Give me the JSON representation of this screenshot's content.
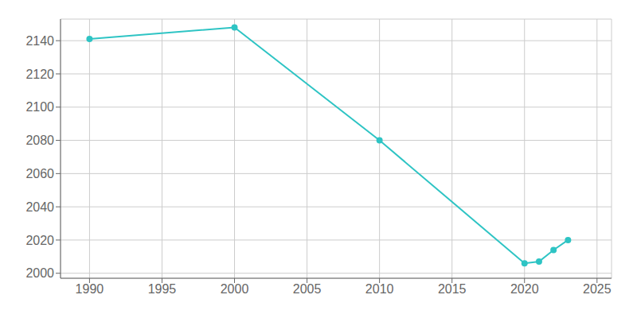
{
  "chart_data": {
    "type": "line",
    "x": [
      1990,
      2000,
      2010,
      2020,
      2021,
      2022,
      2023
    ],
    "values": [
      2141,
      2148,
      2080,
      2006,
      2007,
      2014,
      2020
    ],
    "color": "#2ec4c4",
    "marker": "circle",
    "xlim": [
      1988,
      2026
    ],
    "ylim": [
      1997,
      2153
    ],
    "xticks": [
      1990,
      1995,
      2000,
      2005,
      2010,
      2015,
      2020,
      2025
    ],
    "yticks": [
      2000,
      2020,
      2040,
      2060,
      2080,
      2100,
      2120,
      2140
    ],
    "grid": true
  }
}
